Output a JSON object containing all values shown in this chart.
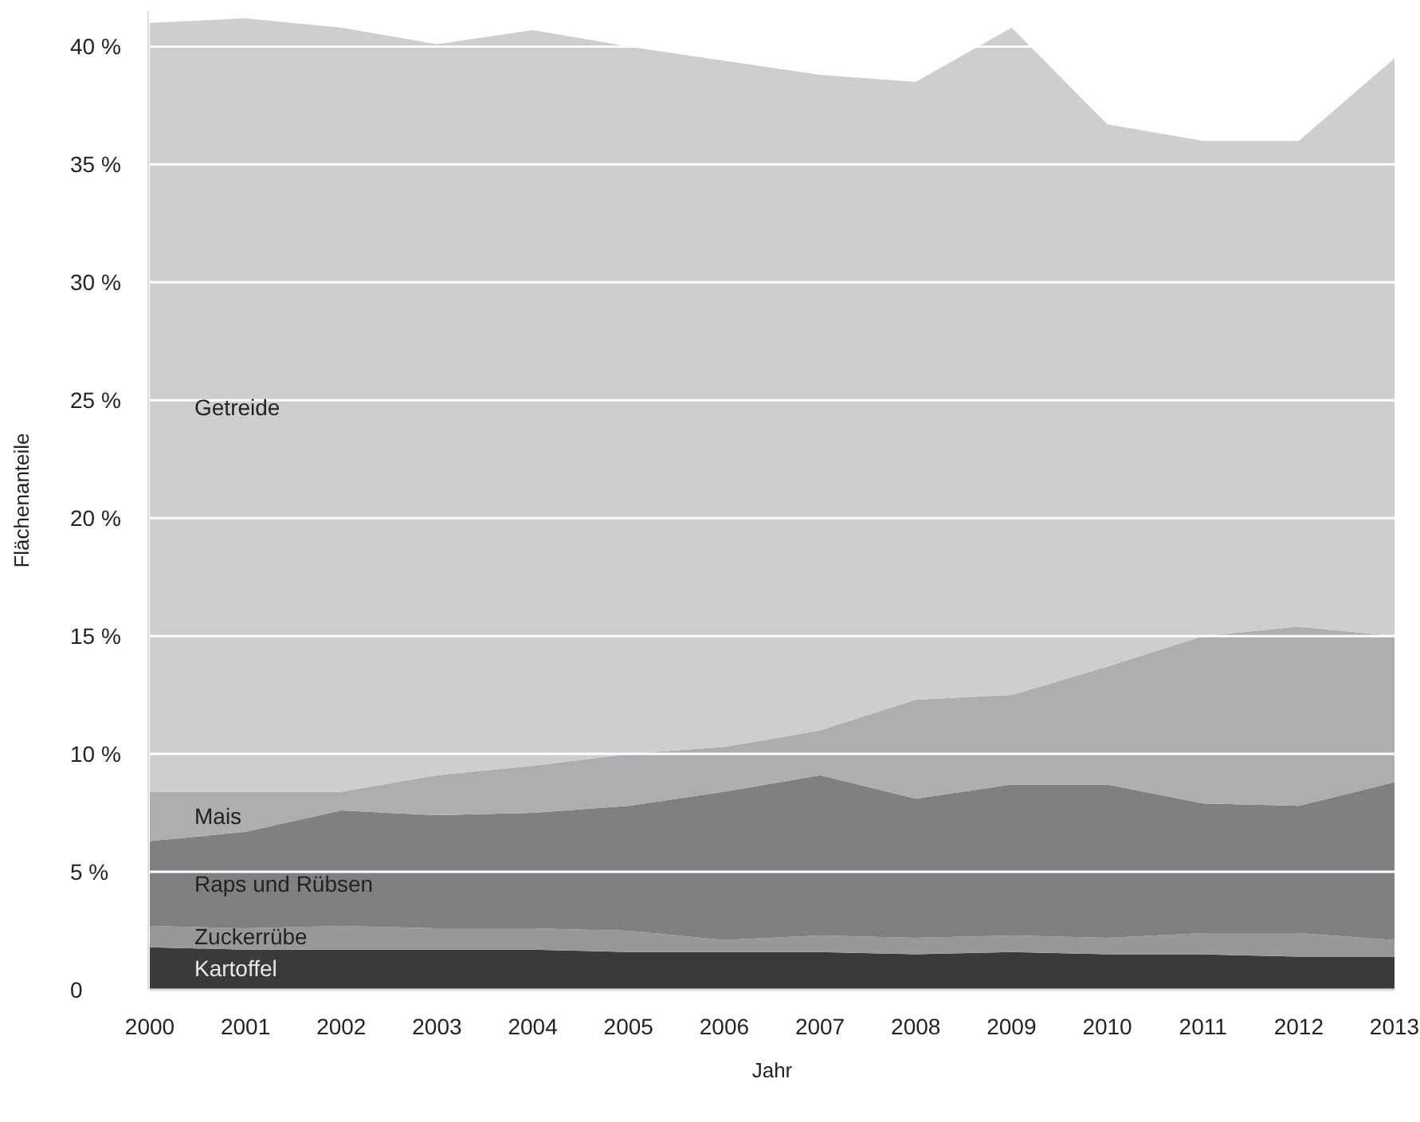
{
  "chart_data": {
    "type": "area",
    "stacked": true,
    "xlabel": "Jahr",
    "ylabel": "Flächenanteile",
    "x": [
      2000,
      2001,
      2002,
      2003,
      2004,
      2005,
      2006,
      2007,
      2008,
      2009,
      2010,
      2011,
      2012,
      2013
    ],
    "xlim": [
      2000,
      2013
    ],
    "xticks": [
      2000,
      2001,
      2002,
      2003,
      2004,
      2005,
      2006,
      2007,
      2008,
      2009,
      2010,
      2011,
      2012,
      2013
    ],
    "ylim": [
      0,
      41.5
    ],
    "yticks": [
      {
        "value": 0,
        "label": "0"
      },
      {
        "value": 5,
        "label": "5 %"
      },
      {
        "value": 10,
        "label": "10 %"
      },
      {
        "value": 15,
        "label": "15 %"
      },
      {
        "value": 20,
        "label": "20 %"
      },
      {
        "value": 25,
        "label": "25 %"
      },
      {
        "value": 30,
        "label": "30 %"
      },
      {
        "value": 35,
        "label": "35 %"
      },
      {
        "value": 40,
        "label": "40 %"
      }
    ],
    "grid": "y",
    "series": [
      {
        "name": "Kartoffel",
        "color": "#3a3a3b",
        "values": [
          1.8,
          1.7,
          1.7,
          1.7,
          1.7,
          1.6,
          1.6,
          1.6,
          1.5,
          1.6,
          1.5,
          1.5,
          1.4,
          1.4
        ]
      },
      {
        "name": "Zuckerrübe",
        "color": "#97989b",
        "values": [
          0.9,
          0.9,
          1.0,
          0.9,
          0.9,
          0.9,
          0.5,
          0.7,
          0.7,
          0.7,
          0.7,
          0.9,
          1.0,
          0.7
        ]
      },
      {
        "name": "Raps und Rübsen",
        "color": "#7f8084",
        "values": [
          3.6,
          4.1,
          4.9,
          4.8,
          4.9,
          5.3,
          6.3,
          6.8,
          5.9,
          6.4,
          6.5,
          5.5,
          5.4,
          6.7
        ]
      },
      {
        "name": "Mais",
        "color": "#adaeb1",
        "values": [
          2.1,
          1.7,
          0.8,
          1.7,
          2.0,
          2.2,
          1.9,
          1.9,
          4.2,
          3.8,
          5.0,
          7.1,
          7.6,
          6.2
        ]
      },
      {
        "name": "Getreide",
        "color": "#cdcecf",
        "values": [
          32.6,
          32.8,
          32.4,
          31.0,
          31.2,
          30.0,
          29.1,
          27.8,
          26.2,
          28.3,
          23.0,
          21.0,
          20.6,
          24.5
        ]
      }
    ]
  }
}
